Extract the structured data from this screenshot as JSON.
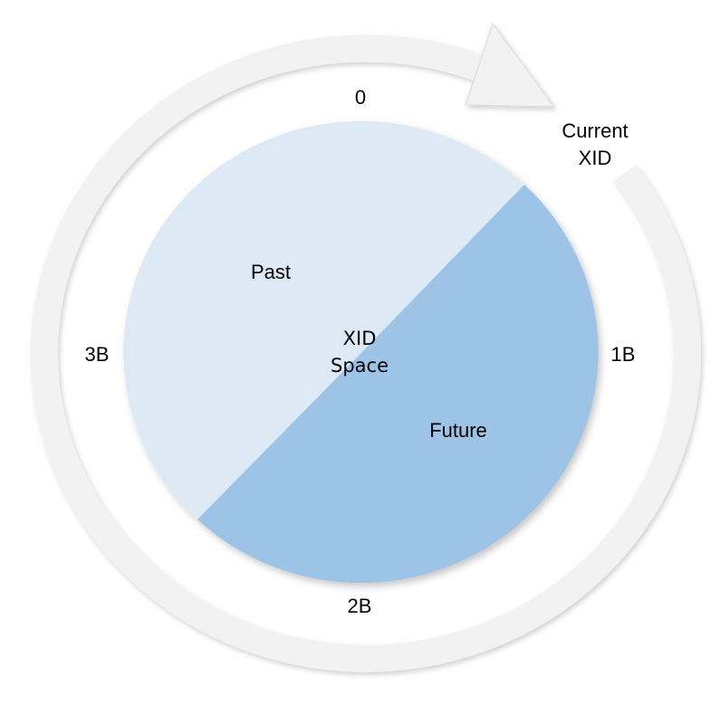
{
  "colors": {
    "past_slice": "#dde9f5",
    "future_slice": "#9dc3e6",
    "ring_arrow": "#f2f2f2",
    "ring_edge": "#d9d9d9",
    "text": "#000000"
  },
  "diagram": {
    "ring_labels": {
      "zero": "0",
      "one_b": "1B",
      "two_b": "2B",
      "three_b": "3B"
    },
    "current_xid": {
      "line1": "Current",
      "line2": "XID"
    },
    "center": {
      "line1": "XID",
      "line2": "Space"
    },
    "slices": {
      "past": "Past",
      "future": "Future"
    }
  }
}
